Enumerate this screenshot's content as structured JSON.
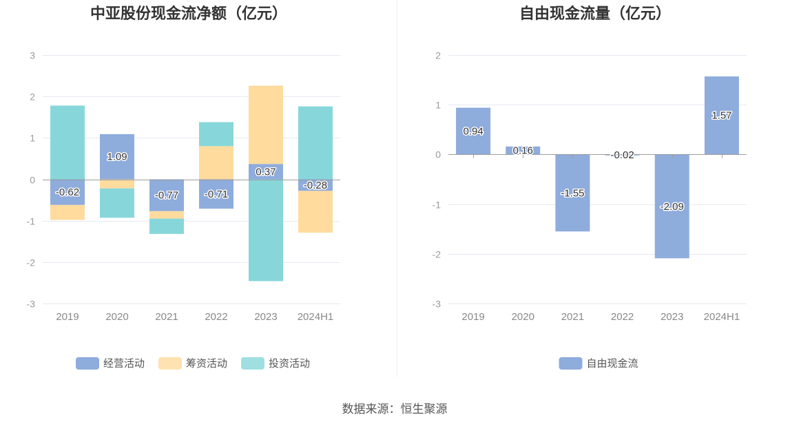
{
  "chart_data": [
    {
      "type": "bar",
      "stacked": true,
      "title": "中亚股份现金流净额（亿元）",
      "categories": [
        "2019",
        "2020",
        "2021",
        "2022",
        "2023",
        "2024H1"
      ],
      "series": [
        {
          "name": "经营活动",
          "values": [
            -0.62,
            1.09,
            -0.77,
            -0.71,
            0.37,
            -0.28
          ],
          "color": "#8eacdc",
          "data_labels": true
        },
        {
          "name": "筹资活动",
          "values": [
            -0.36,
            -0.22,
            -0.18,
            0.8,
            1.89,
            -1.01
          ],
          "color": "#ffdb9e",
          "data_labels": false
        },
        {
          "name": "投资活动",
          "values": [
            1.78,
            -0.71,
            -0.37,
            0.58,
            -2.46,
            1.76
          ],
          "color": "#87d7da",
          "data_labels": false
        }
      ],
      "ylim": [
        -3,
        3
      ],
      "yticks": [
        -3,
        -2,
        -1,
        0,
        1,
        2,
        3
      ],
      "grid": true,
      "legend": "bottom"
    },
    {
      "type": "bar",
      "stacked": false,
      "title": "自由现金流量（亿元）",
      "categories": [
        "2019",
        "2020",
        "2021",
        "2022",
        "2023",
        "2024H1"
      ],
      "series": [
        {
          "name": "自由现金流",
          "values": [
            0.94,
            0.16,
            -1.55,
            -0.02,
            -2.09,
            1.57
          ],
          "color": "#8eacdc",
          "data_labels": true
        }
      ],
      "ylim": [
        -3,
        2
      ],
      "yticks": [
        -3,
        -2,
        -1,
        0,
        1,
        2
      ],
      "grid": true,
      "legend": "bottom"
    }
  ],
  "source": "数据来源：恒生聚源"
}
